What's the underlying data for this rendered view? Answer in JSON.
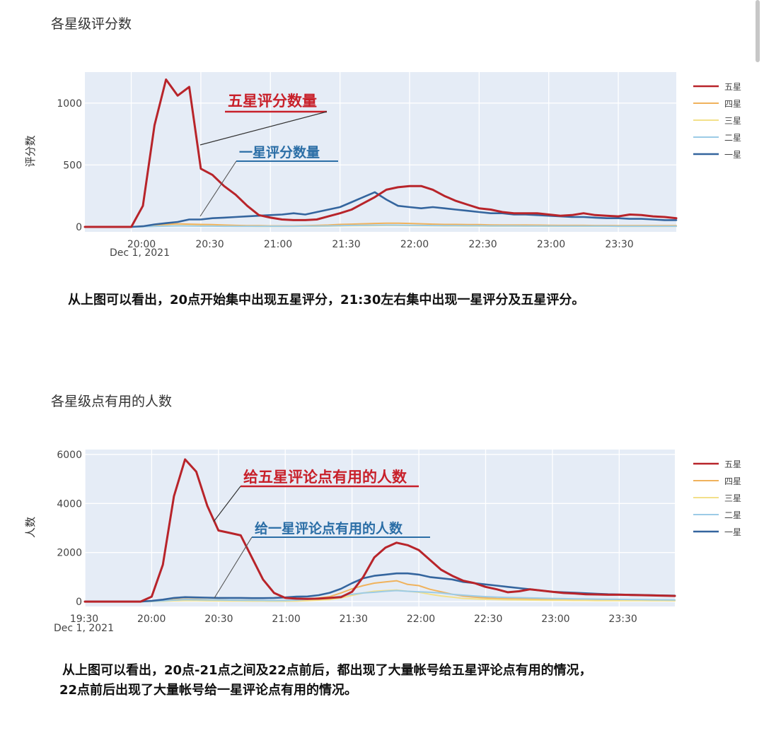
{
  "colors": {
    "five_star": "#b8242a",
    "four_star": "#f0b25c",
    "three_star": "#f3e08a",
    "two_star": "#9ccbe6",
    "one_star": "#34659e",
    "plot_bg": "#e5ecf6",
    "annotation_red": "#c8202a",
    "annotation_blue": "#2b6ea6"
  },
  "chart_data": [
    {
      "type": "line",
      "title": "各星级评分数",
      "xlabel": "",
      "ylabel": "评分数",
      "x_ticks": [
        "20:00",
        "20:30",
        "21:00",
        "21:30",
        "22:00",
        "22:30",
        "23:00",
        "23:30"
      ],
      "x_sublabel": "Dec 1, 2021",
      "xlim": [
        "19:40",
        "23:55"
      ],
      "y_ticks": [
        0,
        500,
        1000
      ],
      "ylim": [
        -40,
        1250
      ],
      "grid": true,
      "legend_position": "right",
      "legend": [
        "五星",
        "四星",
        "三星",
        "二星",
        "一星"
      ],
      "x": [
        "19:40",
        "19:45",
        "19:50",
        "19:55",
        "20:00",
        "20:05",
        "20:10",
        "20:15",
        "20:20",
        "20:25",
        "20:30",
        "20:35",
        "20:40",
        "20:45",
        "20:50",
        "20:55",
        "21:00",
        "21:05",
        "21:10",
        "21:15",
        "21:20",
        "21:25",
        "21:30",
        "21:35",
        "21:40",
        "21:45",
        "21:50",
        "21:55",
        "22:00",
        "22:05",
        "22:10",
        "22:15",
        "22:20",
        "22:25",
        "22:30",
        "22:35",
        "22:40",
        "22:45",
        "22:50",
        "22:55",
        "23:00",
        "23:05",
        "23:10",
        "23:15",
        "23:20",
        "23:25",
        "23:30",
        "23:35",
        "23:40",
        "23:45",
        "23:50",
        "23:55"
      ],
      "series": [
        {
          "name": "五星",
          "values": [
            0,
            0,
            0,
            0,
            0,
            170,
            820,
            1190,
            1060,
            1130,
            470,
            420,
            330,
            260,
            170,
            95,
            75,
            60,
            55,
            55,
            60,
            85,
            110,
            140,
            190,
            240,
            300,
            320,
            330,
            330,
            300,
            250,
            210,
            180,
            150,
            140,
            120,
            110,
            110,
            110,
            100,
            90,
            95,
            110,
            95,
            90,
            85,
            100,
            95,
            85,
            80,
            70
          ]
        },
        {
          "name": "四星",
          "values": [
            0,
            0,
            0,
            0,
            0,
            5,
            12,
            20,
            25,
            22,
            20,
            18,
            15,
            12,
            10,
            10,
            8,
            8,
            8,
            10,
            12,
            15,
            20,
            22,
            25,
            28,
            30,
            30,
            28,
            25,
            22,
            20,
            20,
            18,
            18,
            16,
            15,
            15,
            15,
            14,
            13,
            12,
            12,
            12,
            11,
            11,
            10,
            10,
            10,
            10,
            10,
            10
          ]
        },
        {
          "name": "三星",
          "values": [
            0,
            0,
            0,
            0,
            0,
            2,
            5,
            8,
            10,
            9,
            8,
            7,
            6,
            5,
            5,
            4,
            4,
            4,
            4,
            5,
            5,
            6,
            8,
            9,
            10,
            11,
            12,
            12,
            11,
            10,
            9,
            8,
            8,
            7,
            7,
            6,
            6,
            6,
            6,
            6,
            5,
            5,
            5,
            5,
            5,
            5,
            4,
            4,
            4,
            4,
            4,
            4
          ]
        },
        {
          "name": "二星",
          "values": [
            0,
            0,
            0,
            0,
            0,
            2,
            4,
            6,
            8,
            7,
            6,
            6,
            5,
            5,
            5,
            5,
            5,
            5,
            5,
            6,
            7,
            8,
            10,
            12,
            13,
            14,
            15,
            14,
            13,
            12,
            11,
            10,
            10,
            9,
            9,
            8,
            8,
            8,
            7,
            7,
            7,
            6,
            6,
            6,
            6,
            6,
            5,
            5,
            5,
            5,
            5,
            5
          ]
        },
        {
          "name": "一星",
          "values": [
            0,
            0,
            0,
            0,
            0,
            5,
            20,
            30,
            40,
            60,
            60,
            70,
            75,
            80,
            85,
            90,
            95,
            100,
            110,
            100,
            120,
            140,
            160,
            200,
            240,
            280,
            220,
            170,
            160,
            150,
            160,
            150,
            140,
            130,
            120,
            110,
            110,
            100,
            100,
            95,
            90,
            85,
            80,
            80,
            75,
            70,
            70,
            65,
            65,
            60,
            55,
            55
          ]
        }
      ],
      "annotations": [
        {
          "text": "五星评分数量",
          "color": "red"
        },
        {
          "text": "一星评分数量",
          "color": "blue"
        }
      ],
      "caption": "从上图可以看出，20点开始集中出现五星评分，21:30左右集中出现一星评分及五星评分。"
    },
    {
      "type": "line",
      "title": "各星级点有用的人数",
      "xlabel": "",
      "ylabel": "人数",
      "x_ticks": [
        "19:30",
        "20:00",
        "20:30",
        "21:00",
        "21:30",
        "22:00",
        "22:30",
        "23:00",
        "23:30"
      ],
      "x_sublabel": "Dec 1, 2021",
      "xlim": [
        "19:30",
        "23:55"
      ],
      "y_ticks": [
        0,
        2000,
        4000,
        6000
      ],
      "ylim": [
        -200,
        6200
      ],
      "grid": true,
      "legend_position": "right",
      "legend": [
        "五星",
        "四星",
        "三星",
        "二星",
        "一星"
      ],
      "x": [
        "19:30",
        "19:35",
        "19:40",
        "19:45",
        "19:50",
        "19:55",
        "20:00",
        "20:05",
        "20:10",
        "20:15",
        "20:20",
        "20:25",
        "20:30",
        "20:35",
        "20:40",
        "20:45",
        "20:50",
        "20:55",
        "21:00",
        "21:05",
        "21:10",
        "21:15",
        "21:20",
        "21:25",
        "21:30",
        "21:35",
        "21:40",
        "21:45",
        "21:50",
        "21:55",
        "22:00",
        "22:05",
        "22:10",
        "22:15",
        "22:20",
        "22:25",
        "22:30",
        "22:35",
        "22:40",
        "22:45",
        "22:50",
        "22:55",
        "23:00",
        "23:05",
        "23:10",
        "23:15",
        "23:20",
        "23:25",
        "23:30",
        "23:35",
        "23:40",
        "23:45",
        "23:50",
        "23:55"
      ],
      "series": [
        {
          "name": "五星",
          "values": [
            0,
            0,
            0,
            0,
            0,
            0,
            200,
            1500,
            4300,
            5800,
            5300,
            3900,
            2900,
            2800,
            2700,
            1800,
            900,
            350,
            150,
            120,
            110,
            120,
            150,
            180,
            400,
            1000,
            1800,
            2200,
            2400,
            2300,
            2100,
            1700,
            1300,
            1050,
            850,
            750,
            600,
            500,
            380,
            420,
            500,
            450,
            400,
            350,
            330,
            300,
            290,
            280,
            280,
            270,
            260,
            250,
            240,
            230
          ]
        },
        {
          "name": "四星",
          "values": [
            0,
            0,
            0,
            0,
            0,
            0,
            10,
            40,
            80,
            100,
            90,
            80,
            70,
            60,
            55,
            50,
            45,
            40,
            40,
            50,
            100,
            150,
            200,
            350,
            520,
            650,
            750,
            800,
            850,
            700,
            650,
            500,
            400,
            300,
            220,
            180,
            150,
            130,
            120,
            110,
            100,
            95,
            90,
            85,
            80,
            75,
            70,
            70,
            65,
            60,
            60,
            55,
            55,
            50
          ]
        },
        {
          "name": "三星",
          "values": [
            0,
            0,
            0,
            0,
            0,
            0,
            5,
            15,
            30,
            40,
            35,
            30,
            28,
            25,
            22,
            20,
            18,
            16,
            15,
            20,
            40,
            60,
            80,
            150,
            250,
            350,
            420,
            450,
            470,
            420,
            380,
            300,
            230,
            180,
            130,
            110,
            90,
            80,
            70,
            65,
            60,
            55,
            50,
            50,
            45,
            45,
            40,
            40,
            38,
            36,
            35,
            34,
            33,
            32
          ]
        },
        {
          "name": "二星",
          "values": [
            0,
            0,
            0,
            0,
            0,
            0,
            10,
            30,
            60,
            80,
            75,
            70,
            65,
            60,
            55,
            50,
            48,
            45,
            45,
            60,
            90,
            120,
            150,
            220,
            300,
            350,
            380,
            420,
            450,
            420,
            400,
            380,
            350,
            300,
            260,
            230,
            200,
            180,
            170,
            160,
            150,
            140,
            130,
            120,
            110,
            105,
            100,
            95,
            90,
            85,
            80,
            75,
            70,
            65
          ]
        },
        {
          "name": "一星",
          "values": [
            0,
            0,
            0,
            0,
            0,
            0,
            30,
            80,
            150,
            180,
            170,
            160,
            150,
            150,
            150,
            140,
            140,
            150,
            170,
            200,
            210,
            260,
            360,
            520,
            750,
            950,
            1050,
            1100,
            1150,
            1150,
            1100,
            1000,
            950,
            900,
            800,
            750,
            700,
            650,
            600,
            550,
            500,
            450,
            400,
            380,
            360,
            340,
            320,
            300,
            290,
            280,
            270,
            260,
            250,
            240
          ]
        }
      ],
      "annotations": [
        {
          "text": "给五星评论点有用的人数",
          "color": "red"
        },
        {
          "text": "给一星评论点有用的人数",
          "color": "blue"
        }
      ],
      "caption_lines": [
        "从上图可以看出，20点-21点之间及22点前后，都出现了大量帐号给五星评论点有用的情况，",
        "22点前后出现了大量帐号给一星评论点有用的情况。"
      ]
    }
  ]
}
